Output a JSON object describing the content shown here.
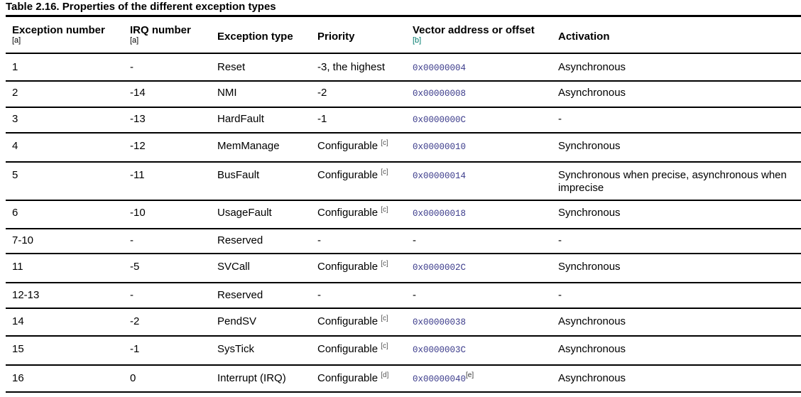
{
  "caption": "Table 2.16. Properties of the different exception types",
  "headers": {
    "exception_number": "Exception number",
    "exception_number_fn": "[a]",
    "irq_number": "IRQ number",
    "irq_number_fn": "[a]",
    "exception_type": "Exception type",
    "priority": "Priority",
    "vector": "Vector address or offset",
    "vector_fn": "[b]",
    "activation": "Activation"
  },
  "rows": [
    {
      "num": "1",
      "irq": "-",
      "type": "Reset",
      "priority": "-3, the highest",
      "pfn": "",
      "vector": "0x00000004",
      "vfn": "",
      "activation": "Asynchronous"
    },
    {
      "num": "2",
      "irq": "-14",
      "type": "NMI",
      "priority": "-2",
      "pfn": "",
      "vector": "0x00000008",
      "vfn": "",
      "activation": "Asynchronous"
    },
    {
      "num": "3",
      "irq": "-13",
      "type": "HardFault",
      "priority": "-1",
      "pfn": "",
      "vector": "0x0000000C",
      "vfn": "",
      "activation": "-"
    },
    {
      "num": "4",
      "irq": "-12",
      "type": "MemManage",
      "priority": "Configurable",
      "pfn": "[c]",
      "vector": "0x00000010",
      "vfn": "",
      "activation": "Synchronous"
    },
    {
      "num": "5",
      "irq": "-11",
      "type": "BusFault",
      "priority": "Configurable",
      "pfn": "[c]",
      "vector": "0x00000014",
      "vfn": "",
      "activation": "Synchronous when precise, asynchronous when imprecise"
    },
    {
      "num": "6",
      "irq": "-10",
      "type": "UsageFault",
      "priority": "Configurable",
      "pfn": "[c]",
      "vector": "0x00000018",
      "vfn": "",
      "activation": "Synchronous"
    },
    {
      "num": "7-10",
      "irq": "-",
      "type": "Reserved",
      "priority": "-",
      "pfn": "",
      "vector": "-",
      "vfn": "",
      "activation": "-"
    },
    {
      "num": "11",
      "irq": "-5",
      "type": "SVCall",
      "priority": "Configurable",
      "pfn": "[c]",
      "vector": "0x0000002C",
      "vfn": "",
      "activation": "Synchronous"
    },
    {
      "num": "12-13",
      "irq": "-",
      "type": "Reserved",
      "priority": "-",
      "pfn": "",
      "vector": "-",
      "vfn": "",
      "activation": "-"
    },
    {
      "num": "14",
      "irq": "-2",
      "type": "PendSV",
      "priority": "Configurable",
      "pfn": "[c]",
      "vector": "0x00000038",
      "vfn": "",
      "activation": "Asynchronous"
    },
    {
      "num": "15",
      "irq": "-1",
      "type": "SysTick",
      "priority": "Configurable",
      "pfn": "[c]",
      "vector": "0x0000003C",
      "vfn": "",
      "activation": "Asynchronous"
    },
    {
      "num": "16",
      "irq": "0",
      "type": "Interrupt (IRQ)",
      "priority": "Configurable",
      "pfn": "[d]",
      "vector": "0x00000040",
      "vfn": "[e]",
      "activation": "Asynchronous"
    }
  ]
}
